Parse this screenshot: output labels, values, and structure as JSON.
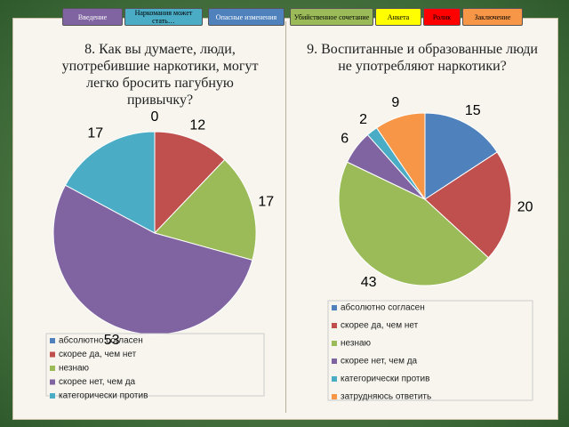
{
  "nav": [
    "Введение",
    "Наркомания может стать…",
    "Опасные изменения",
    "Убийственное сочетание",
    "Анкета",
    "Ролик",
    "Заключение"
  ],
  "chart_data": [
    {
      "type": "pie",
      "title": "8. Как вы думаете, люди, употребившие наркотики, могут легко бросить пагубную привычку?",
      "categories": [
        "абсолютно согласен",
        "скорее да, чем нет",
        "незнаю",
        "скорее нет, чем да",
        "категорически против"
      ],
      "values": [
        0,
        12,
        17,
        53,
        17
      ],
      "colors": [
        "#4f81bd",
        "#c0504d",
        "#9bbb59",
        "#8064a2",
        "#4bacc6"
      ]
    },
    {
      "type": "pie",
      "title": "9. Воспитанные и образованные люди не употребляют наркотики?",
      "categories": [
        "абсолютно согласен",
        "скорее да, чем нет",
        "незнаю",
        "скорее нет, чем да",
        "категорически против",
        "затрудняюсь ответить"
      ],
      "values": [
        15,
        20,
        43,
        6,
        2,
        9
      ],
      "colors": [
        "#4f81bd",
        "#c0504d",
        "#9bbb59",
        "#8064a2",
        "#4bacc6",
        "#f79646"
      ]
    }
  ]
}
